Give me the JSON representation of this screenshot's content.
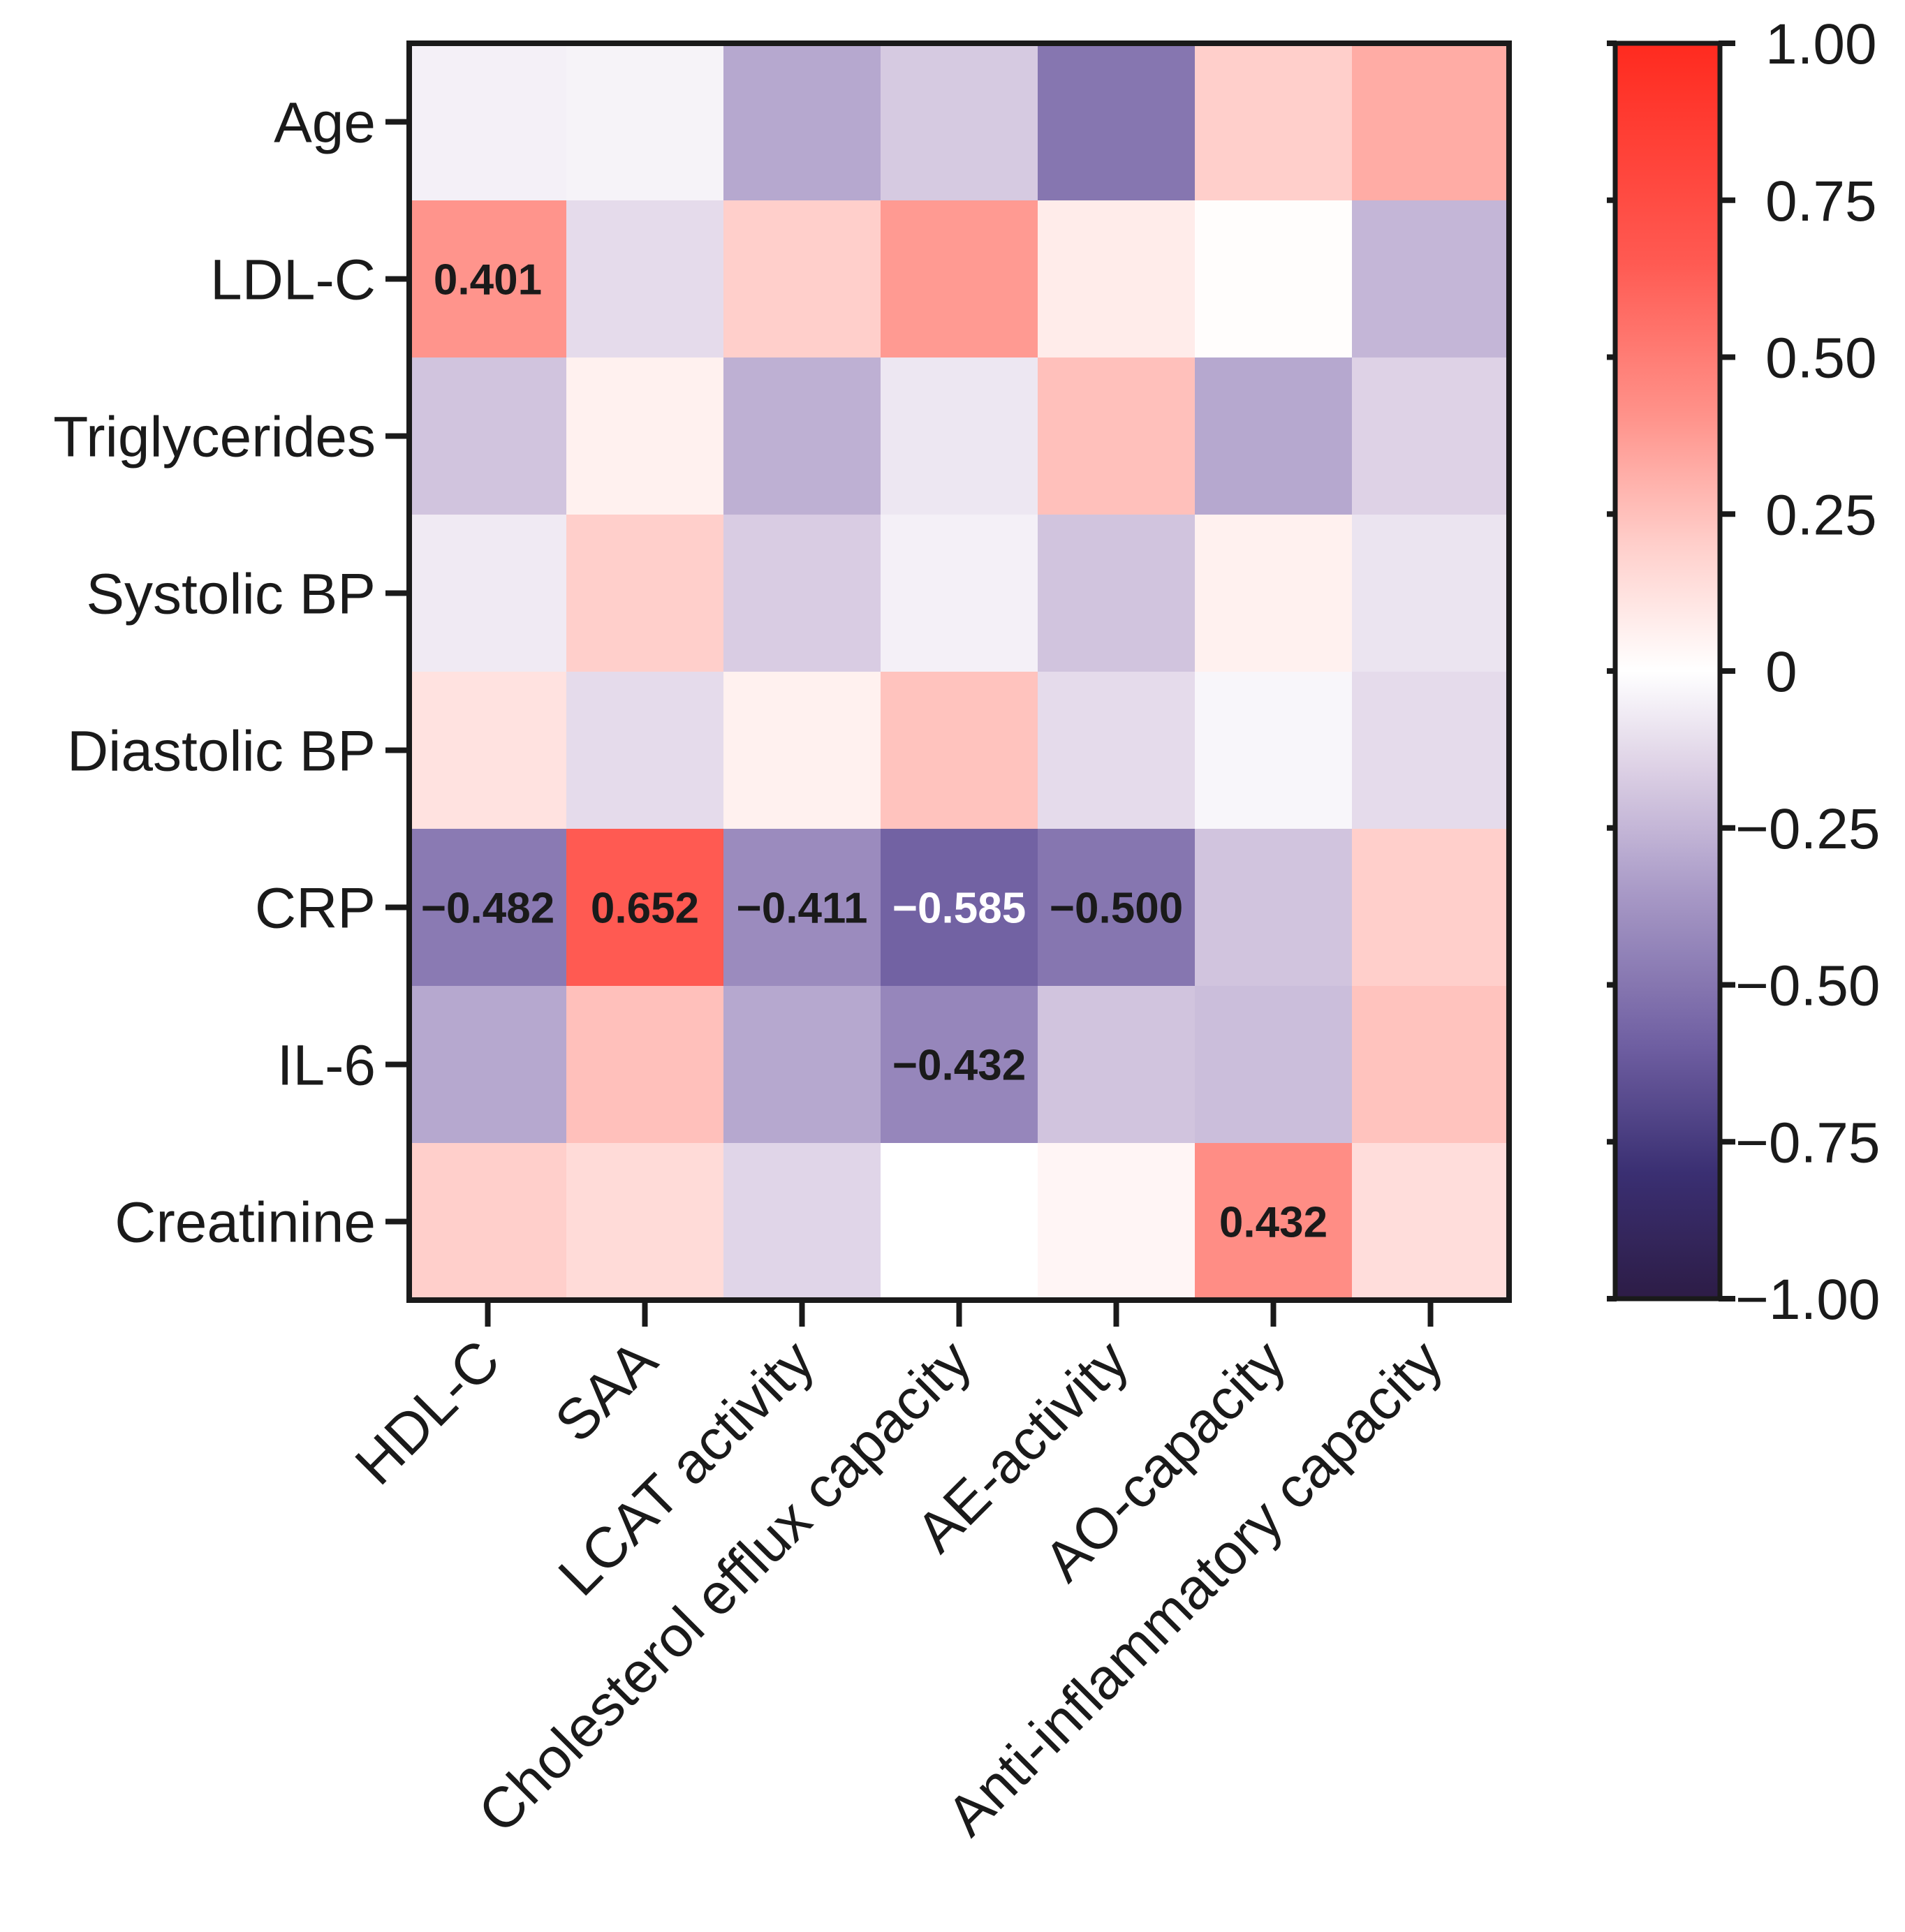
{
  "chart_data": {
    "type": "heatmap",
    "title": "",
    "xlabel": "",
    "ylabel": "",
    "rows": [
      "Age",
      "LDL-C",
      "Triglycerides",
      "Systolic BP",
      "Diastolic BP",
      "CRP",
      "IL-6",
      "Creatinine"
    ],
    "columns": [
      "HDL-C",
      "SAA",
      "LCAT activity",
      "Cholesterol efflux capacity",
      "AE-activity",
      "AO-capacity",
      "Anti-inflammatory capacity"
    ],
    "values": [
      [
        -0.05,
        -0.04,
        -0.3,
        -0.18,
        -0.5,
        0.2,
        0.32
      ],
      [
        0.401,
        -0.12,
        0.2,
        0.38,
        0.08,
        0.01,
        -0.25
      ],
      [
        -0.2,
        0.06,
        -0.27,
        -0.08,
        0.25,
        -0.3,
        -0.15
      ],
      [
        -0.07,
        0.2,
        -0.17,
        -0.05,
        -0.2,
        0.06,
        -0.09
      ],
      [
        0.12,
        -0.12,
        0.06,
        0.24,
        -0.12,
        -0.03,
        -0.12
      ],
      [
        -0.482,
        0.652,
        -0.411,
        -0.585,
        -0.5,
        -0.2,
        0.2
      ],
      [
        -0.3,
        0.25,
        -0.3,
        -0.432,
        -0.2,
        -0.22,
        0.24
      ],
      [
        0.2,
        0.15,
        -0.14,
        0.0,
        0.04,
        0.432,
        0.14
      ]
    ],
    "cell_labels": [
      [
        "",
        "",
        "",
        "",
        "",
        "",
        ""
      ],
      [
        "0.401",
        "",
        "",
        "",
        "",
        "",
        ""
      ],
      [
        "",
        "",
        "",
        "",
        "",
        "",
        ""
      ],
      [
        "",
        "",
        "",
        "",
        "",
        "",
        ""
      ],
      [
        "",
        "",
        "",
        "",
        "",
        "",
        ""
      ],
      [
        "−0.482",
        "0.652",
        "−0.411",
        "−0.585",
        "−0.500",
        "",
        ""
      ],
      [
        "",
        "",
        "",
        "−0.432",
        "",
        "",
        ""
      ],
      [
        "",
        "",
        "",
        "",
        "",
        "0.432",
        ""
      ]
    ],
    "white_text_cells": [
      [
        5,
        3
      ]
    ],
    "colorbar": {
      "range": [
        -1,
        1
      ],
      "ticks": [
        1,
        0.75,
        0.5,
        0.25,
        0,
        -0.25,
        -0.5,
        -0.75,
        -1
      ],
      "tick_labels": [
        "1.00",
        "0.75",
        "0.50",
        "0.25",
        "0",
        "−0.25",
        "−0.50",
        "−0.75",
        "−1.00"
      ],
      "color_max": "#ff2a1f",
      "color_zero": "#ffffff",
      "color_min": "#2d1c46",
      "neg_stops": [
        {
          "v": 0,
          "c": "#ffffff"
        },
        {
          "v": -0.15,
          "c": "#ded2e6"
        },
        {
          "v": -0.35,
          "c": "#a99ac7"
        },
        {
          "v": -0.6,
          "c": "#6e5ea1"
        },
        {
          "v": -0.8,
          "c": "#3a2f72"
        },
        {
          "v": -1,
          "c": "#2d1c46"
        }
      ],
      "pos_stops": [
        {
          "v": 0,
          "c": "#ffffff"
        },
        {
          "v": 0.2,
          "c": "#ffcfcb"
        },
        {
          "v": 0.4,
          "c": "#ff948c"
        },
        {
          "v": 0.65,
          "c": "#ff5a52"
        },
        {
          "v": 1,
          "c": "#ff2a1f"
        }
      ]
    },
    "grid": false,
    "legend": "colorbar right"
  }
}
